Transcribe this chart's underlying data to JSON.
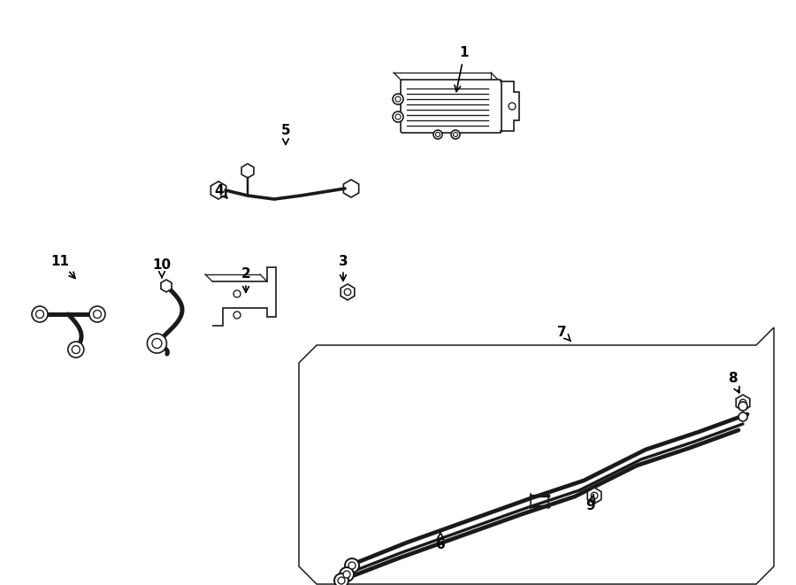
{
  "bg_color": "#ffffff",
  "line_color": "#1a1a1a",
  "label_color": "#000000",
  "label_positions": {
    "1": [
      525,
      601,
      515,
      553
    ],
    "2": [
      278,
      351,
      278,
      326
    ],
    "3": [
      388,
      366,
      388,
      339
    ],
    "4": [
      248,
      446,
      258,
      436
    ],
    "5": [
      323,
      513,
      323,
      493
    ],
    "6": [
      498,
      46,
      498,
      61
    ],
    "7": [
      635,
      286,
      648,
      273
    ],
    "8": [
      828,
      233,
      838,
      213
    ],
    "9": [
      668,
      89,
      672,
      106
    ],
    "10": [
      183,
      361,
      183,
      343
    ],
    "11": [
      68,
      366,
      88,
      343
    ]
  }
}
